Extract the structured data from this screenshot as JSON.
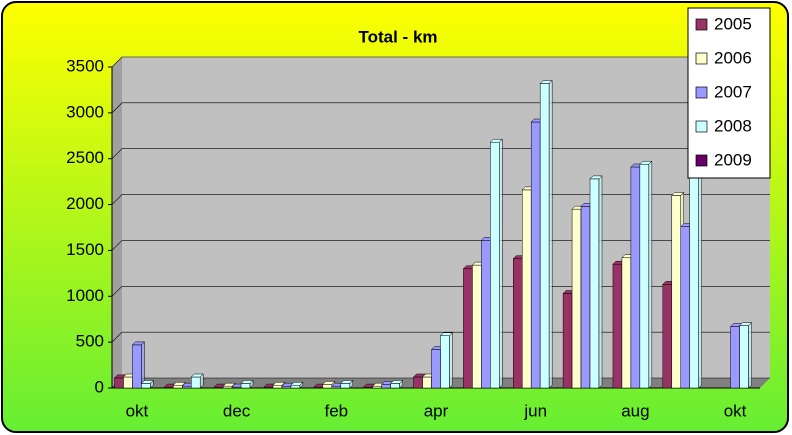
{
  "chart_data": {
    "type": "bar",
    "title": "Total - km",
    "categories": [
      "okt",
      null,
      "dec",
      null,
      "feb",
      null,
      "apr",
      null,
      "jun",
      null,
      "aug",
      null,
      "okt"
    ],
    "series": [
      {
        "name": "2005",
        "color": "#993366",
        "values": [
          110,
          10,
          10,
          10,
          10,
          10,
          120,
          1300,
          1410,
          1030,
          1350,
          1130,
          null
        ]
      },
      {
        "name": "2006",
        "color": "#ffffcc",
        "values": [
          120,
          30,
          20,
          30,
          40,
          20,
          120,
          1340,
          2160,
          1950,
          1420,
          2100,
          null
        ]
      },
      {
        "name": "2007",
        "color": "#9999ff",
        "values": [
          470,
          20,
          10,
          20,
          20,
          40,
          420,
          1610,
          2900,
          1980,
          2410,
          1760,
          670
        ]
      },
      {
        "name": "2008",
        "color": "#ccffff",
        "values": [
          50,
          120,
          50,
          30,
          50,
          50,
          570,
          2680,
          3320,
          2280,
          2440,
          2600,
          680
        ]
      },
      {
        "name": "2009",
        "color": "#660066",
        "values": [
          null,
          null,
          null,
          null,
          null,
          null,
          null,
          null,
          null,
          null,
          null,
          null,
          null
        ]
      }
    ],
    "ylim": [
      0,
      3500
    ],
    "yticks": [
      0,
      500,
      1000,
      1500,
      2000,
      2500,
      3000,
      3500
    ],
    "grid": true,
    "legend": "top-right"
  }
}
